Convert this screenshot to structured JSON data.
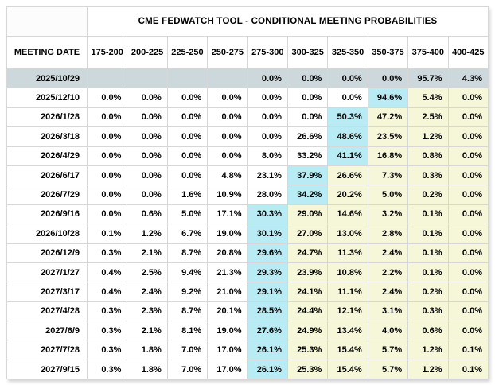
{
  "title": "CME FEDWATCH TOOL - CONDITIONAL MEETING PROBABILITIES",
  "table": {
    "date_header": "MEETING DATE",
    "rate_headers": [
      "175-200",
      "200-225",
      "225-250",
      "250-275",
      "275-300",
      "300-325",
      "325-350",
      "350-375",
      "375-400",
      "400-425"
    ],
    "rows": [
      {
        "date": "2025/10/29",
        "values": [
          "",
          "",
          "",
          "",
          "0.0%",
          "0.0%",
          "0.0%",
          "0.0%",
          "95.7%",
          "4.3%"
        ],
        "styles": [
          "s",
          "s",
          "s",
          "s",
          "s",
          "s",
          "s",
          "s",
          "s",
          "s"
        ]
      },
      {
        "date": "2025/12/10",
        "values": [
          "0.0%",
          "0.0%",
          "0.0%",
          "0.0%",
          "0.0%",
          "0.0%",
          "0.0%",
          "94.6%",
          "5.4%",
          "0.0%"
        ],
        "styles": [
          "",
          "",
          "",
          "",
          "",
          "",
          "",
          "c",
          "y",
          "y"
        ]
      },
      {
        "date": "2026/1/28",
        "values": [
          "0.0%",
          "0.0%",
          "0.0%",
          "0.0%",
          "0.0%",
          "0.0%",
          "50.3%",
          "47.2%",
          "2.5%",
          "0.0%"
        ],
        "styles": [
          "",
          "",
          "",
          "",
          "",
          "",
          "c",
          "y",
          "y",
          "y"
        ]
      },
      {
        "date": "2026/3/18",
        "values": [
          "0.0%",
          "0.0%",
          "0.0%",
          "0.0%",
          "0.0%",
          "26.6%",
          "48.6%",
          "23.5%",
          "1.2%",
          "0.0%"
        ],
        "styles": [
          "",
          "",
          "",
          "",
          "",
          "",
          "c",
          "y",
          "y",
          "y"
        ]
      },
      {
        "date": "2026/4/29",
        "values": [
          "0.0%",
          "0.0%",
          "0.0%",
          "0.0%",
          "8.0%",
          "33.2%",
          "41.1%",
          "16.8%",
          "0.8%",
          "0.0%"
        ],
        "styles": [
          "",
          "",
          "",
          "",
          "",
          "",
          "c",
          "y",
          "y",
          "y"
        ]
      },
      {
        "date": "2026/6/17",
        "values": [
          "0.0%",
          "0.0%",
          "0.0%",
          "4.8%",
          "23.1%",
          "37.9%",
          "26.6%",
          "7.3%",
          "0.3%",
          "0.0%"
        ],
        "styles": [
          "",
          "",
          "",
          "",
          "",
          "c",
          "y",
          "y",
          "y",
          "y"
        ]
      },
      {
        "date": "2026/7/29",
        "values": [
          "0.0%",
          "0.0%",
          "1.6%",
          "10.9%",
          "28.0%",
          "34.2%",
          "20.2%",
          "5.0%",
          "0.2%",
          "0.0%"
        ],
        "styles": [
          "",
          "",
          "",
          "",
          "",
          "c",
          "y",
          "y",
          "y",
          "y"
        ]
      },
      {
        "date": "2026/9/16",
        "values": [
          "0.0%",
          "0.6%",
          "5.0%",
          "17.1%",
          "30.3%",
          "29.0%",
          "14.6%",
          "3.2%",
          "0.1%",
          "0.0%"
        ],
        "styles": [
          "",
          "",
          "",
          "",
          "c",
          "y",
          "y",
          "y",
          "y",
          "y"
        ]
      },
      {
        "date": "2026/10/28",
        "values": [
          "0.1%",
          "1.2%",
          "6.7%",
          "19.0%",
          "30.1%",
          "27.0%",
          "13.0%",
          "2.8%",
          "0.1%",
          "0.0%"
        ],
        "styles": [
          "",
          "",
          "",
          "",
          "c",
          "y",
          "y",
          "y",
          "y",
          "y"
        ]
      },
      {
        "date": "2026/12/9",
        "values": [
          "0.3%",
          "2.1%",
          "8.7%",
          "20.8%",
          "29.6%",
          "24.7%",
          "11.3%",
          "2.4%",
          "0.1%",
          "0.0%"
        ],
        "styles": [
          "",
          "",
          "",
          "",
          "c",
          "y",
          "y",
          "y",
          "y",
          "y"
        ]
      },
      {
        "date": "2027/1/27",
        "values": [
          "0.4%",
          "2.5%",
          "9.4%",
          "21.3%",
          "29.3%",
          "23.9%",
          "10.8%",
          "2.2%",
          "0.1%",
          "0.0%"
        ],
        "styles": [
          "",
          "",
          "",
          "",
          "c",
          "y",
          "y",
          "y",
          "y",
          "y"
        ]
      },
      {
        "date": "2027/3/17",
        "values": [
          "0.4%",
          "2.4%",
          "9.2%",
          "21.0%",
          "29.1%",
          "24.1%",
          "11.1%",
          "2.4%",
          "0.2%",
          "0.0%"
        ],
        "styles": [
          "",
          "",
          "",
          "",
          "c",
          "y",
          "y",
          "y",
          "y",
          "y"
        ]
      },
      {
        "date": "2027/4/28",
        "values": [
          "0.3%",
          "2.3%",
          "8.7%",
          "20.1%",
          "28.5%",
          "24.4%",
          "12.1%",
          "3.1%",
          "0.3%",
          "0.0%"
        ],
        "styles": [
          "",
          "",
          "",
          "",
          "c",
          "y",
          "y",
          "y",
          "y",
          "y"
        ]
      },
      {
        "date": "2027/6/9",
        "values": [
          "0.3%",
          "2.1%",
          "8.1%",
          "19.0%",
          "27.6%",
          "24.9%",
          "13.4%",
          "4.0%",
          "0.6%",
          "0.0%"
        ],
        "styles": [
          "",
          "",
          "",
          "",
          "c",
          "y",
          "y",
          "y",
          "y",
          "y"
        ]
      },
      {
        "date": "2027/7/28",
        "values": [
          "0.3%",
          "1.8%",
          "7.0%",
          "17.0%",
          "26.1%",
          "25.3%",
          "15.4%",
          "5.7%",
          "1.2%",
          "0.1%"
        ],
        "styles": [
          "",
          "",
          "",
          "",
          "c",
          "y",
          "y",
          "y",
          "y",
          "y"
        ]
      },
      {
        "date": "2027/9/15",
        "values": [
          "0.3%",
          "1.8%",
          "7.0%",
          "17.0%",
          "26.1%",
          "25.3%",
          "15.4%",
          "5.7%",
          "1.2%",
          "0.1%"
        ],
        "styles": [
          "",
          "",
          "",
          "",
          "c",
          "y",
          "y",
          "y",
          "y",
          "y"
        ]
      }
    ]
  },
  "colors": {
    "cyan_cell": "#b8ebf4",
    "yellow_cell": "#f6f6d8",
    "selected_row": "#ccd8dc",
    "grid_border": "#d7d7d7",
    "text": "#000000"
  }
}
